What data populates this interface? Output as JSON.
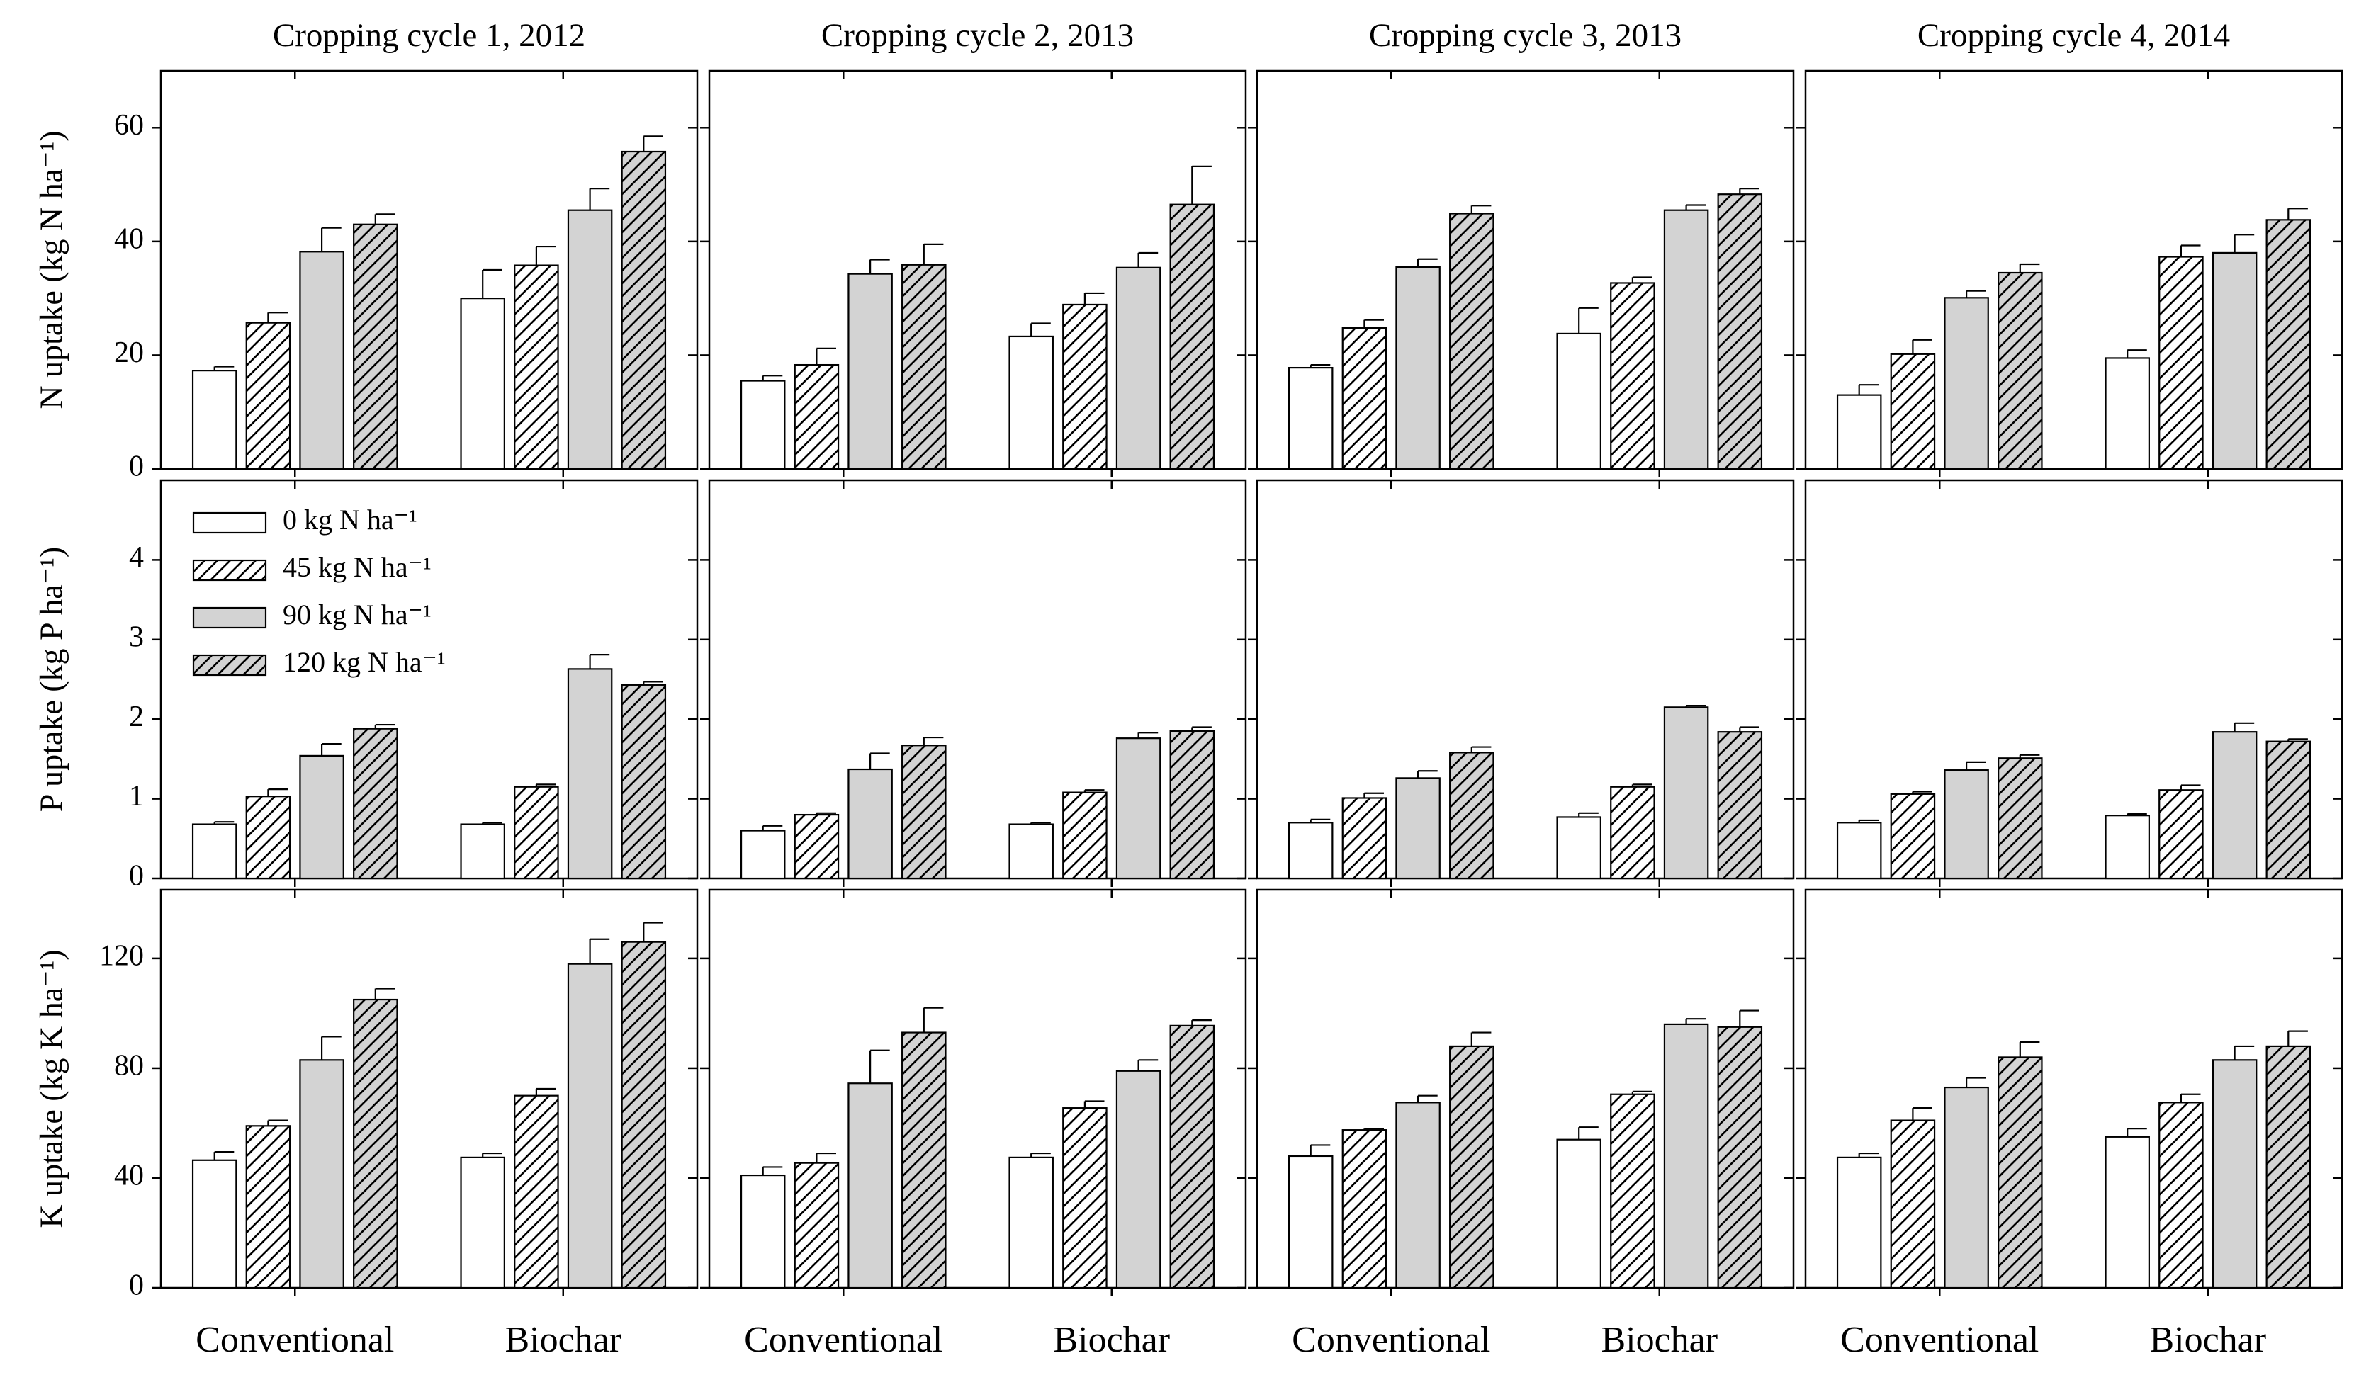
{
  "chart_data": [
    {
      "type": "bar",
      "title": "Cropping cycle 1, 2012",
      "ylabel": "N uptake (kg N ha⁻¹)",
      "categories": [
        null,
        null
      ],
      "ylim": [
        0,
        70
      ],
      "yticks": [
        0,
        20,
        40,
        60
      ],
      "ytick_labels": true,
      "series": [
        {
          "color": "#ffffff",
          "hatch": false,
          "values": [
            17.3,
            30
          ],
          "errors": [
            0.7,
            5
          ]
        },
        {
          "color": "#ffffff",
          "hatch": true,
          "values": [
            25.7,
            35.8
          ],
          "errors": [
            1.8,
            3.3
          ]
        },
        {
          "color": "#d3d3d3",
          "hatch": false,
          "values": [
            38.2,
            45.5
          ],
          "errors": [
            4.2,
            3.8
          ]
        },
        {
          "color": "#d3d3d3",
          "hatch": true,
          "values": [
            43.0,
            55.8
          ],
          "errors": [
            1.8,
            2.7
          ]
        }
      ]
    },
    {
      "type": "bar",
      "title": "Cropping cycle 2, 2013",
      "categories": [
        null,
        null
      ],
      "ylim": [
        0,
        70
      ],
      "yticks": [
        0,
        20,
        40,
        60
      ],
      "ytick_labels": false,
      "series": [
        {
          "color": "#ffffff",
          "hatch": false,
          "values": [
            15.5,
            23.3
          ],
          "errors": [
            0.9,
            2.3
          ]
        },
        {
          "color": "#ffffff",
          "hatch": true,
          "values": [
            18.3,
            28.9
          ],
          "errors": [
            2.9,
            2
          ]
        },
        {
          "color": "#d3d3d3",
          "hatch": false,
          "values": [
            34.3,
            35.4
          ],
          "errors": [
            2.5,
            2.6
          ]
        },
        {
          "color": "#d3d3d3",
          "hatch": true,
          "values": [
            35.9,
            46.5
          ],
          "errors": [
            3.6,
            6.7
          ]
        }
      ]
    },
    {
      "type": "bar",
      "title": "Cropping cycle 3, 2013",
      "categories": [
        null,
        null
      ],
      "ylim": [
        0,
        70
      ],
      "yticks": [
        0,
        20,
        40,
        60
      ],
      "ytick_labels": false,
      "series": [
        {
          "color": "#ffffff",
          "hatch": false,
          "values": [
            17.8,
            23.8
          ],
          "errors": [
            0.5,
            4.5
          ]
        },
        {
          "color": "#ffffff",
          "hatch": true,
          "values": [
            24.8,
            32.7
          ],
          "errors": [
            1.4,
            1
          ]
        },
        {
          "color": "#d3d3d3",
          "hatch": false,
          "values": [
            35.5,
            45.5
          ],
          "errors": [
            1.4,
            0.9
          ]
        },
        {
          "color": "#d3d3d3",
          "hatch": true,
          "values": [
            44.9,
            48.3
          ],
          "errors": [
            1.4,
            1
          ]
        }
      ]
    },
    {
      "type": "bar",
      "title": "Cropping cycle 4, 2014",
      "categories": [
        null,
        null
      ],
      "ylim": [
        0,
        70
      ],
      "yticks": [
        0,
        20,
        40,
        60
      ],
      "ytick_labels": false,
      "series": [
        {
          "color": "#ffffff",
          "hatch": false,
          "values": [
            13,
            19.5
          ],
          "errors": [
            1.8,
            1.4
          ]
        },
        {
          "color": "#ffffff",
          "hatch": true,
          "values": [
            20.2,
            37.3
          ],
          "errors": [
            2.5,
            2
          ]
        },
        {
          "color": "#d3d3d3",
          "hatch": false,
          "values": [
            30.1,
            38
          ],
          "errors": [
            1.2,
            3.2
          ]
        },
        {
          "color": "#d3d3d3",
          "hatch": true,
          "values": [
            34.5,
            43.8
          ],
          "errors": [
            1.5,
            2
          ]
        }
      ]
    },
    {
      "type": "bar",
      "ylabel": "P uptake (kg P ha⁻¹)",
      "categories": [
        null,
        null
      ],
      "ylim": [
        0,
        5
      ],
      "yticks": [
        0,
        1,
        2,
        3,
        4
      ],
      "ytick_labels": true,
      "legend": "upper left",
      "series": [
        {
          "name": "0 kg N ha⁻¹",
          "color": "#ffffff",
          "hatch": false,
          "values": [
            0.68,
            0.68
          ],
          "errors": [
            0.03,
            0.02
          ]
        },
        {
          "name": "45 kg N ha⁻¹",
          "color": "#ffffff",
          "hatch": true,
          "values": [
            1.03,
            1.15
          ],
          "errors": [
            0.09,
            0.03
          ]
        },
        {
          "name": "90 kg N ha⁻¹",
          "color": "#d3d3d3",
          "hatch": false,
          "values": [
            1.54,
            2.63
          ],
          "errors": [
            0.15,
            0.18
          ]
        },
        {
          "name": "120 kg N ha⁻¹",
          "color": "#d3d3d3",
          "hatch": true,
          "values": [
            1.88,
            2.43
          ],
          "errors": [
            0.05,
            0.04
          ]
        }
      ]
    },
    {
      "type": "bar",
      "categories": [
        null,
        null
      ],
      "ylim": [
        0,
        5
      ],
      "yticks": [
        0,
        1,
        2,
        3,
        4
      ],
      "ytick_labels": false,
      "series": [
        {
          "color": "#ffffff",
          "hatch": false,
          "values": [
            0.6,
            0.68
          ],
          "errors": [
            0.06,
            0.02
          ]
        },
        {
          "color": "#ffffff",
          "hatch": true,
          "values": [
            0.8,
            1.08
          ],
          "errors": [
            0.02,
            0.03
          ]
        },
        {
          "color": "#d3d3d3",
          "hatch": false,
          "values": [
            1.37,
            1.76
          ],
          "errors": [
            0.2,
            0.07
          ]
        },
        {
          "color": "#d3d3d3",
          "hatch": true,
          "values": [
            1.67,
            1.85
          ],
          "errors": [
            0.1,
            0.05
          ]
        }
      ]
    },
    {
      "type": "bar",
      "categories": [
        null,
        null
      ],
      "ylim": [
        0,
        5
      ],
      "yticks": [
        0,
        1,
        2,
        3,
        4
      ],
      "ytick_labels": false,
      "series": [
        {
          "color": "#ffffff",
          "hatch": false,
          "values": [
            0.7,
            0.77
          ],
          "errors": [
            0.04,
            0.05
          ]
        },
        {
          "color": "#ffffff",
          "hatch": true,
          "values": [
            1.01,
            1.15
          ],
          "errors": [
            0.06,
            0.03
          ]
        },
        {
          "color": "#d3d3d3",
          "hatch": false,
          "values": [
            1.26,
            2.15
          ],
          "errors": [
            0.09,
            0.02
          ]
        },
        {
          "color": "#d3d3d3",
          "hatch": true,
          "values": [
            1.58,
            1.84
          ],
          "errors": [
            0.07,
            0.06
          ]
        }
      ]
    },
    {
      "type": "bar",
      "categories": [
        null,
        null
      ],
      "ylim": [
        0,
        5
      ],
      "yticks": [
        0,
        1,
        2,
        3,
        4
      ],
      "ytick_labels": false,
      "series": [
        {
          "color": "#ffffff",
          "hatch": false,
          "values": [
            0.7,
            0.79
          ],
          "errors": [
            0.03,
            0.02
          ]
        },
        {
          "color": "#ffffff",
          "hatch": true,
          "values": [
            1.06,
            1.11
          ],
          "errors": [
            0.03,
            0.06
          ]
        },
        {
          "color": "#d3d3d3",
          "hatch": false,
          "values": [
            1.36,
            1.84
          ],
          "errors": [
            0.1,
            0.11
          ]
        },
        {
          "color": "#d3d3d3",
          "hatch": true,
          "values": [
            1.51,
            1.72
          ],
          "errors": [
            0.04,
            0.03
          ]
        }
      ]
    },
    {
      "type": "bar",
      "ylabel": "K uptake (kg K ha⁻¹)",
      "categories": [
        "Conventional",
        "Biochar"
      ],
      "ylim": [
        0,
        145
      ],
      "yticks": [
        0,
        40,
        80,
        120
      ],
      "ytick_labels": true,
      "series": [
        {
          "color": "#ffffff",
          "hatch": false,
          "values": [
            46.5,
            47.5
          ],
          "errors": [
            3,
            1.5
          ]
        },
        {
          "color": "#ffffff",
          "hatch": true,
          "values": [
            59,
            70
          ],
          "errors": [
            2,
            2.5
          ]
        },
        {
          "color": "#d3d3d3",
          "hatch": false,
          "values": [
            83,
            118
          ],
          "errors": [
            8.5,
            9
          ]
        },
        {
          "color": "#d3d3d3",
          "hatch": true,
          "values": [
            105,
            126
          ],
          "errors": [
            4,
            7
          ]
        }
      ]
    },
    {
      "type": "bar",
      "categories": [
        "Conventional",
        "Biochar"
      ],
      "ylim": [
        0,
        145
      ],
      "yticks": [
        0,
        40,
        80,
        120
      ],
      "ytick_labels": false,
      "series": [
        {
          "color": "#ffffff",
          "hatch": false,
          "values": [
            41,
            47.5
          ],
          "errors": [
            3,
            1.5
          ]
        },
        {
          "color": "#ffffff",
          "hatch": true,
          "values": [
            45.5,
            65.5
          ],
          "errors": [
            3.5,
            2.5
          ]
        },
        {
          "color": "#d3d3d3",
          "hatch": false,
          "values": [
            74.5,
            79
          ],
          "errors": [
            12,
            4
          ]
        },
        {
          "color": "#d3d3d3",
          "hatch": true,
          "values": [
            93,
            95.5
          ],
          "errors": [
            9,
            2
          ]
        }
      ]
    },
    {
      "type": "bar",
      "categories": [
        "Conventional",
        "Biochar"
      ],
      "ylim": [
        0,
        145
      ],
      "yticks": [
        0,
        40,
        80,
        120
      ],
      "ytick_labels": false,
      "series": [
        {
          "color": "#ffffff",
          "hatch": false,
          "values": [
            48,
            54
          ],
          "errors": [
            4,
            4.5
          ]
        },
        {
          "color": "#ffffff",
          "hatch": true,
          "values": [
            57.5,
            70.5
          ],
          "errors": [
            0.5,
            1
          ]
        },
        {
          "color": "#d3d3d3",
          "hatch": false,
          "values": [
            67.5,
            96
          ],
          "errors": [
            2.5,
            2
          ]
        },
        {
          "color": "#d3d3d3",
          "hatch": true,
          "values": [
            88,
            95
          ],
          "errors": [
            5,
            6
          ]
        }
      ]
    },
    {
      "type": "bar",
      "categories": [
        "Conventional",
        "Biochar"
      ],
      "ylim": [
        0,
        145
      ],
      "yticks": [
        0,
        40,
        80,
        120
      ],
      "ytick_labels": false,
      "series": [
        {
          "color": "#ffffff",
          "hatch": false,
          "values": [
            47.5,
            55
          ],
          "errors": [
            1.5,
            3
          ]
        },
        {
          "color": "#ffffff",
          "hatch": true,
          "values": [
            61,
            67.5
          ],
          "errors": [
            4.5,
            3
          ]
        },
        {
          "color": "#d3d3d3",
          "hatch": false,
          "values": [
            73,
            83
          ],
          "errors": [
            3.5,
            5
          ]
        },
        {
          "color": "#d3d3d3",
          "hatch": true,
          "values": [
            84,
            88
          ],
          "errors": [
            5.5,
            5.5
          ]
        }
      ]
    }
  ]
}
